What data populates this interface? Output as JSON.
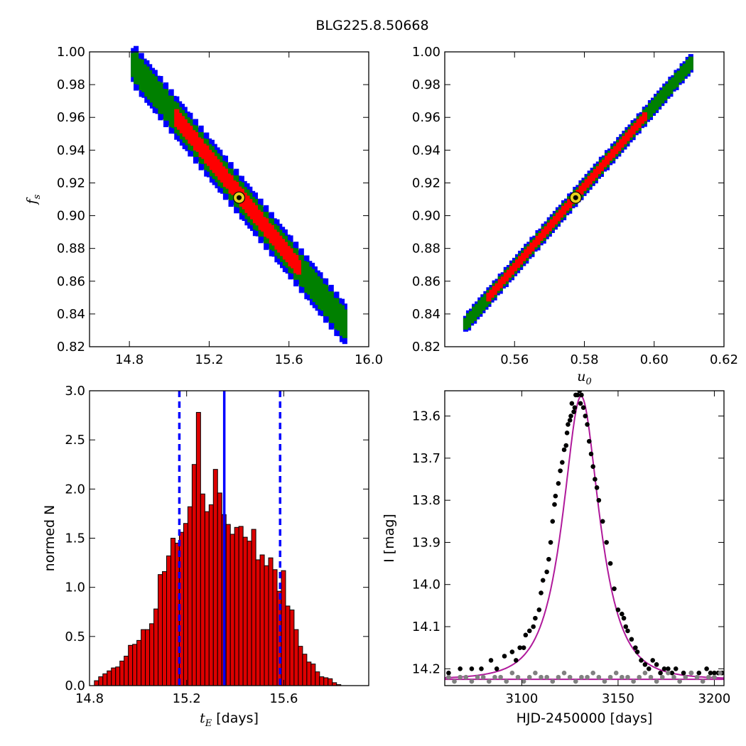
{
  "figure_title": "BLG225.8.50668",
  "colors": {
    "outer": "#0000ff",
    "middle": "#008000",
    "inner": "#ff0000",
    "best_marker": "#e6d21e",
    "fit_curve": "#b0199b",
    "hist_fill": "#dd0000",
    "hist_line": "#0000ff",
    "data_black": "#000000",
    "data_gray": "#808080"
  },
  "chart_data": [
    {
      "id": "fs_vs_tE",
      "type": "heatmap",
      "xlabel": "",
      "ylabel": "f_s",
      "xlim": [
        14.6,
        16.0
      ],
      "ylim": [
        0.82,
        1.0
      ],
      "xticks": [
        "14.8",
        "15.2",
        "15.6",
        "16.0"
      ],
      "xtick_values": [
        14.8,
        15.2,
        15.6,
        16.0
      ],
      "yticks": [
        "0.82",
        "0.84",
        "0.86",
        "0.88",
        "0.90",
        "0.92",
        "0.94",
        "0.96",
        "0.98",
        "1.00"
      ],
      "ytick_values": [
        0.82,
        0.84,
        0.86,
        0.88,
        0.9,
        0.92,
        0.94,
        0.96,
        0.98,
        1.0
      ],
      "ridge": {
        "x_start": 14.82,
        "y_start": 0.993,
        "x_end": 15.88,
        "y_end": 0.835
      },
      "band_halfwidth_fs": {
        "outer": 0.011,
        "middle": 0.0075,
        "inner": 0.004
      },
      "inner_range_x": [
        15.03,
        15.66
      ],
      "best_fit": {
        "x": 15.35,
        "y": 0.911
      }
    },
    {
      "id": "fs_vs_u0",
      "type": "heatmap",
      "xlabel": "u_0",
      "ylabel": "",
      "xlim": [
        0.54,
        0.62
      ],
      "ylim": [
        0.82,
        1.0
      ],
      "xticks": [
        "0.56",
        "0.58",
        "0.60",
        "0.62"
      ],
      "xtick_values": [
        0.56,
        0.58,
        0.6,
        0.62
      ],
      "yticks": [
        "0.82",
        "0.84",
        "0.86",
        "0.88",
        "0.90",
        "0.92",
        "0.94",
        "0.96",
        "0.98",
        "1.00"
      ],
      "ytick_values": [
        0.82,
        0.84,
        0.86,
        0.88,
        0.9,
        0.92,
        0.94,
        0.96,
        0.98,
        1.0
      ],
      "ridge": {
        "x_start": 0.546,
        "y_start": 0.835,
        "x_end": 0.6105,
        "y_end": 0.994
      },
      "band_halfwidth_fs": {
        "outer": 0.0045,
        "middle": 0.003,
        "inner": 0.0015
      },
      "inner_range_x": [
        0.552,
        0.598
      ],
      "best_fit": {
        "x": 0.5775,
        "y": 0.911
      }
    },
    {
      "id": "tE_histogram",
      "type": "bar",
      "xlabel": "t_E [days]",
      "ylabel": "normed N",
      "xlim": [
        14.8,
        15.95
      ],
      "ylim": [
        0.0,
        3.0
      ],
      "xticks": [
        "14.8",
        "15.2",
        "15.6"
      ],
      "xtick_values": [
        14.8,
        15.2,
        15.6
      ],
      "yticks": [
        "0.0",
        "0.5",
        "1.0",
        "1.5",
        "2.0",
        "2.5",
        "3.0"
      ],
      "ytick_values": [
        0.0,
        0.5,
        1.0,
        1.5,
        2.0,
        2.5,
        3.0
      ],
      "bin_start": 14.82,
      "bin_width": 0.0175,
      "values": [
        0.05,
        0.09,
        0.12,
        0.15,
        0.18,
        0.19,
        0.25,
        0.3,
        0.41,
        0.42,
        0.46,
        0.57,
        0.57,
        0.63,
        0.78,
        1.13,
        1.16,
        1.32,
        1.5,
        1.45,
        1.56,
        1.65,
        1.82,
        2.25,
        2.78,
        1.95,
        1.77,
        1.84,
        2.2,
        1.96,
        1.74,
        1.64,
        1.54,
        1.61,
        1.62,
        1.51,
        1.47,
        1.59,
        1.28,
        1.33,
        1.22,
        1.3,
        1.18,
        0.96,
        1.17,
        0.81,
        0.77,
        0.57,
        0.4,
        0.32,
        0.24,
        0.22,
        0.14,
        0.09,
        0.08,
        0.07,
        0.03,
        0.01
      ],
      "best_value": 15.355,
      "lower_bound": 15.17,
      "upper_bound": 15.585
    },
    {
      "id": "lightcurve",
      "type": "line",
      "xlabel": "HJD-2450000 [days]",
      "ylabel": "I [mag]",
      "xlim": [
        3060,
        3205
      ],
      "ylim": [
        14.24,
        13.54
      ],
      "xticks": [
        "3100",
        "3150",
        "3200"
      ],
      "xtick_values": [
        3100,
        3150,
        3200
      ],
      "yticks": [
        "13.6",
        "13.7",
        "13.8",
        "13.9",
        "14.0",
        "14.1",
        "14.2"
      ],
      "ytick_values": [
        13.6,
        13.7,
        13.8,
        13.9,
        14.0,
        14.1,
        14.2
      ],
      "model": {
        "t0": 3130.8,
        "tE": 15.35,
        "u0": 0.5775,
        "fs": 0.911,
        "baseline": 14.225
      },
      "series": [
        {
          "values_x": [
            3062,
            3068,
            3074,
            3079,
            3084,
            3087,
            3091,
            3095,
            3097,
            3099,
            3101,
            3102,
            3104,
            3106,
            3107,
            3109,
            3110,
            3111,
            3113,
            3114,
            3115,
            3116,
            3117,
            3117.5,
            3119,
            3120,
            3121,
            3122,
            3123,
            3123.5,
            3124,
            3125,
            3125.5,
            3126,
            3127,
            3127.5,
            3128,
            3129,
            3130,
            3130.5,
            3131,
            3132,
            3133,
            3134,
            3135,
            3136,
            3137,
            3138,
            3139,
            3140,
            3142,
            3144,
            3146,
            3148,
            3150,
            3152,
            3153,
            3154,
            3155,
            3157,
            3159,
            3160,
            3162,
            3164,
            3166,
            3168,
            3170,
            3172,
            3174,
            3176,
            3178,
            3180,
            3184,
            3188,
            3192,
            3196,
            3198,
            3200,
            3202,
            3204
          ],
          "values_y": [
            14.21,
            14.2,
            14.2,
            14.2,
            14.18,
            14.2,
            14.17,
            14.16,
            14.18,
            14.15,
            14.15,
            14.12,
            14.11,
            14.1,
            14.08,
            14.06,
            14.02,
            13.99,
            13.97,
            13.94,
            13.9,
            13.85,
            13.81,
            13.79,
            13.76,
            13.73,
            13.71,
            13.68,
            13.67,
            13.64,
            13.62,
            13.61,
            13.6,
            13.57,
            13.59,
            13.58,
            13.55,
            13.55,
            13.54,
            13.57,
            13.55,
            13.58,
            13.6,
            13.62,
            13.66,
            13.69,
            13.72,
            13.75,
            13.77,
            13.8,
            13.85,
            13.9,
            13.95,
            14.01,
            14.06,
            14.07,
            14.08,
            14.1,
            14.11,
            14.13,
            14.15,
            14.16,
            14.18,
            14.19,
            14.2,
            14.18,
            14.19,
            14.21,
            14.2,
            14.2,
            14.21,
            14.2,
            14.21,
            14.21,
            14.21,
            14.2,
            14.21,
            14.21,
            14.21,
            14.21
          ]
        },
        {
          "values_x": [
            3062,
            3065,
            3068,
            3071,
            3074,
            3077,
            3080,
            3083,
            3086,
            3089,
            3092,
            3095,
            3098,
            3101,
            3104,
            3107,
            3110,
            3113,
            3116,
            3119,
            3122,
            3125,
            3128,
            3131,
            3134,
            3137,
            3140,
            3143,
            3146,
            3149,
            3152,
            3155,
            3158,
            3161,
            3164,
            3167,
            3170,
            3173,
            3176,
            3179,
            3182,
            3185,
            3188,
            3191,
            3194,
            3197,
            3200,
            3203
          ],
          "values_y": [
            14.22,
            14.23,
            14.22,
            14.22,
            14.23,
            14.22,
            14.22,
            14.23,
            14.22,
            14.22,
            14.23,
            14.21,
            14.22,
            14.23,
            14.22,
            14.21,
            14.22,
            14.22,
            14.23,
            14.22,
            14.21,
            14.22,
            14.23,
            14.22,
            14.22,
            14.21,
            14.22,
            14.23,
            14.22,
            14.21,
            14.22,
            14.22,
            14.23,
            14.22,
            14.21,
            14.22,
            14.23,
            14.22,
            14.21,
            14.22,
            14.23,
            14.22,
            14.21,
            14.22,
            14.23,
            14.22,
            14.22,
            14.21
          ]
        }
      ]
    }
  ]
}
